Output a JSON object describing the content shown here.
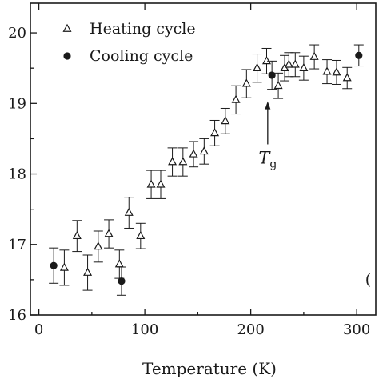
{
  "chart_data": {
    "type": "scatter",
    "xlabel": "Temperature (K)",
    "ylabel": "",
    "xlim": [
      -8,
      318
    ],
    "ylim": [
      16,
      20.42
    ],
    "x_ticks": [
      0,
      100,
      200,
      300
    ],
    "x_tick_labels": [
      "0",
      "100",
      "200",
      "300"
    ],
    "y_ticks": [
      16,
      17,
      18,
      19,
      20
    ],
    "y_tick_labels": [
      "16",
      "17",
      "18",
      "19",
      "20"
    ],
    "grid": false,
    "legend_position": "top-left",
    "series": [
      {
        "name": "Heating cycle",
        "marker": "open-triangle",
        "color": "#1a1a1a",
        "points": [
          {
            "x": 24,
            "y": 16.67,
            "err": 0.25
          },
          {
            "x": 36,
            "y": 17.12,
            "err": 0.22
          },
          {
            "x": 46,
            "y": 16.6,
            "err": 0.25
          },
          {
            "x": 56,
            "y": 16.97,
            "err": 0.22
          },
          {
            "x": 66,
            "y": 17.15,
            "err": 0.2
          },
          {
            "x": 76,
            "y": 16.72,
            "err": 0.2
          },
          {
            "x": 85,
            "y": 17.45,
            "err": 0.22
          },
          {
            "x": 96,
            "y": 17.12,
            "err": 0.18
          },
          {
            "x": 106,
            "y": 17.85,
            "err": 0.2
          },
          {
            "x": 115,
            "y": 17.85,
            "err": 0.2
          },
          {
            "x": 126,
            "y": 18.17,
            "err": 0.2
          },
          {
            "x": 136,
            "y": 18.17,
            "err": 0.2
          },
          {
            "x": 146,
            "y": 18.28,
            "err": 0.18
          },
          {
            "x": 156,
            "y": 18.32,
            "err": 0.18
          },
          {
            "x": 166,
            "y": 18.58,
            "err": 0.18
          },
          {
            "x": 176,
            "y": 18.75,
            "err": 0.18
          },
          {
            "x": 186,
            "y": 19.05,
            "err": 0.2
          },
          {
            "x": 196,
            "y": 19.28,
            "err": 0.2
          },
          {
            "x": 206,
            "y": 19.5,
            "err": 0.2
          },
          {
            "x": 215,
            "y": 19.6,
            "err": 0.18
          },
          {
            "x": 226,
            "y": 19.25,
            "err": 0.18
          },
          {
            "x": 232,
            "y": 19.5,
            "err": 0.18
          },
          {
            "x": 236,
            "y": 19.55,
            "err": 0.17
          },
          {
            "x": 242,
            "y": 19.55,
            "err": 0.17
          },
          {
            "x": 250,
            "y": 19.5,
            "err": 0.17
          },
          {
            "x": 260,
            "y": 19.66,
            "err": 0.17
          },
          {
            "x": 272,
            "y": 19.45,
            "err": 0.17
          },
          {
            "x": 281,
            "y": 19.44,
            "err": 0.17
          },
          {
            "x": 291,
            "y": 19.36,
            "err": 0.15
          }
        ]
      },
      {
        "name": "Cooling cycle",
        "marker": "filled-circle",
        "color": "#1a1a1a",
        "points": [
          {
            "x": 14,
            "y": 16.7,
            "err": 0.25
          },
          {
            "x": 78,
            "y": 16.48,
            "err": 0.2
          },
          {
            "x": 220,
            "y": 19.4,
            "err": 0.2
          },
          {
            "x": 302,
            "y": 19.68,
            "err": 0.15
          }
        ]
      }
    ],
    "annotations": [
      {
        "text": "T",
        "subscript": "g",
        "arrow_x": 216,
        "arrow_from_y": 18.42,
        "arrow_to_y": 19.03,
        "label_x": 216,
        "label_y": 18.15
      }
    ],
    "partial_label": "(",
    "partial_label_anchor": {
      "x": 314,
      "y": 16.5
    }
  }
}
